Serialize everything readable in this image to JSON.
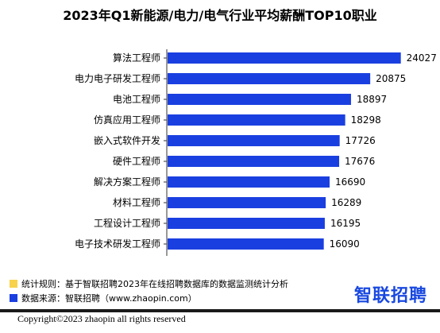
{
  "chart_data": {
    "type": "bar",
    "orientation": "horizontal",
    "title": "2023年Q1新能源/电力/电气行业平均薪酬TOP10职业",
    "categories": [
      "算法工程师",
      "电力电子研发工程师",
      "电池工程师",
      "仿真应用工程师",
      "嵌入式软件开发",
      "硬件工程师",
      "解决方案工程师",
      "材料工程师",
      "工程设计工程师",
      "电子技术研发工程师"
    ],
    "values": [
      24027,
      20875,
      18897,
      18298,
      17726,
      17676,
      16690,
      16289,
      16195,
      16090
    ],
    "bar_color": "#1a3fe0",
    "xlim": [
      0,
      27000
    ]
  },
  "notes": {
    "rule": "统计规则：基于智联招聘2023年在线招聘数据库的数据监测统计分析",
    "source": "数据来源：智联招聘（www.zhaopin.com）",
    "rule_color": "#f7d24a",
    "source_color": "#1a3fe0"
  },
  "brand": "智联招聘",
  "copyright": "Copyright©2023 zhaopin all rights reserved"
}
